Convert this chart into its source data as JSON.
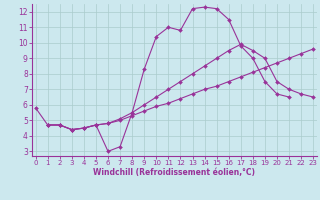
{
  "bg_color": "#cce8ee",
  "grid_color": "#aacccc",
  "line_color": "#993399",
  "xlabel": "Windchill (Refroidissement éolien,°C)",
  "xlim": [
    -0.3,
    23.3
  ],
  "ylim": [
    2.7,
    12.5
  ],
  "yticks": [
    3,
    4,
    5,
    6,
    7,
    8,
    9,
    10,
    11,
    12
  ],
  "xticks": [
    0,
    1,
    2,
    3,
    4,
    5,
    6,
    7,
    8,
    9,
    10,
    11,
    12,
    13,
    14,
    15,
    16,
    17,
    18,
    19,
    20,
    21,
    22,
    23
  ],
  "line1": {
    "x": [
      0,
      1,
      2,
      3,
      4,
      5,
      6,
      7,
      8,
      9,
      10,
      11,
      12,
      13,
      14,
      15,
      16,
      17,
      18,
      19,
      20,
      21
    ],
    "y": [
      5.8,
      4.7,
      4.7,
      4.4,
      4.5,
      4.7,
      3.0,
      3.3,
      5.5,
      8.3,
      10.4,
      11.0,
      10.8,
      12.2,
      12.3,
      12.2,
      11.5,
      9.8,
      9.0,
      7.5,
      6.7,
      6.5
    ]
  },
  "line2": {
    "x": [
      1,
      2,
      3,
      4,
      5,
      6,
      7,
      8,
      9,
      10,
      11,
      12,
      13,
      14,
      15,
      16,
      17,
      18,
      19,
      20,
      21,
      22,
      23
    ],
    "y": [
      4.7,
      4.7,
      4.4,
      4.5,
      4.7,
      4.8,
      5.0,
      5.3,
      5.6,
      5.9,
      6.1,
      6.4,
      6.7,
      7.0,
      7.2,
      7.5,
      7.8,
      8.1,
      8.4,
      8.7,
      9.0,
      9.3,
      9.6
    ]
  },
  "line3": {
    "x": [
      1,
      2,
      3,
      4,
      5,
      6,
      7,
      8,
      9,
      10,
      11,
      12,
      13,
      14,
      15,
      16,
      17,
      18,
      19,
      20,
      21,
      22,
      23
    ],
    "y": [
      4.7,
      4.7,
      4.4,
      4.5,
      4.7,
      4.8,
      5.1,
      5.5,
      6.0,
      6.5,
      7.0,
      7.5,
      8.0,
      8.5,
      9.0,
      9.5,
      9.9,
      9.5,
      9.0,
      7.5,
      7.0,
      6.7,
      6.5
    ]
  }
}
